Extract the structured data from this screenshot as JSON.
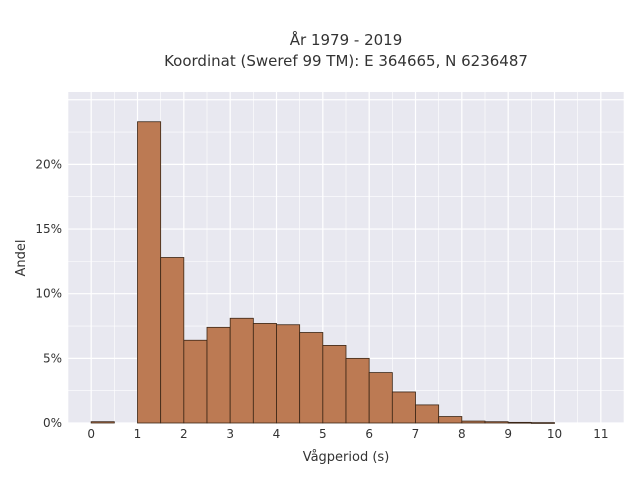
{
  "chart_data": {
    "type": "bar",
    "title": "År 1979 - 2019",
    "subtitle": "Koordinat (Sweref 99 TM): E 364665, N 6236487",
    "xlabel": "Vågperiod (s)",
    "ylabel": "Andel",
    "xlim": [
      -0.5,
      11.5
    ],
    "ylim": [
      0,
      25.6
    ],
    "x_ticks": [
      "0",
      "1",
      "2",
      "3",
      "4",
      "5",
      "6",
      "7",
      "8",
      "9",
      "10",
      "11"
    ],
    "y_ticks": [
      "0%",
      "5%",
      "10%",
      "15%",
      "20%"
    ],
    "bin_width": 0.5,
    "bins": [
      {
        "start": 0.0,
        "value": 0.1
      },
      {
        "start": 0.5,
        "value": 0.0
      },
      {
        "start": 1.0,
        "value": 23.3
      },
      {
        "start": 1.5,
        "value": 12.8
      },
      {
        "start": 2.0,
        "value": 6.4
      },
      {
        "start": 2.5,
        "value": 7.4
      },
      {
        "start": 3.0,
        "value": 8.1
      },
      {
        "start": 3.5,
        "value": 7.7
      },
      {
        "start": 4.0,
        "value": 7.6
      },
      {
        "start": 4.5,
        "value": 7.0
      },
      {
        "start": 5.0,
        "value": 6.0
      },
      {
        "start": 5.5,
        "value": 5.0
      },
      {
        "start": 6.0,
        "value": 3.9
      },
      {
        "start": 6.5,
        "value": 2.4
      },
      {
        "start": 7.0,
        "value": 1.4
      },
      {
        "start": 7.5,
        "value": 0.5
      },
      {
        "start": 8.0,
        "value": 0.15
      },
      {
        "start": 8.5,
        "value": 0.1
      },
      {
        "start": 9.0,
        "value": 0.05
      },
      {
        "start": 9.5,
        "value": 0.03
      }
    ],
    "grid": true,
    "colors": {
      "bar_fill": "#bc7a53",
      "bar_edge": "#3a2515",
      "plot_background": "#e8e8f0",
      "grid": "#ffffff",
      "text": "#333333"
    }
  }
}
